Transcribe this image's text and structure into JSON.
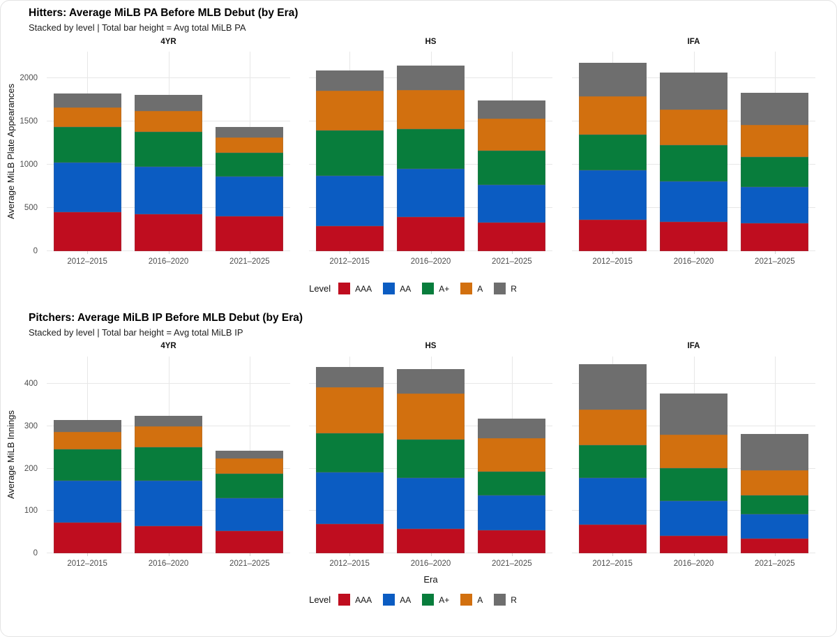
{
  "colors": {
    "AAA": "#bf0d1f",
    "AA": "#0b5cc2",
    "A+": "#087d3c",
    "A": "#d2700f",
    "R": "#6e6e6e"
  },
  "style": {
    "grid_color": "#e7e7e7",
    "tick_text_color": "#4d4d4d",
    "title_color": "#000000"
  },
  "chart_data": [
    {
      "type": "bar",
      "stacked": true,
      "title": "Hitters: Average MiLB PA Before MLB Debut (by Era)",
      "subtitle": "Stacked by level | Total bar height = Avg total MiLB PA",
      "ylabel": "Average MiLB Plate Appearances",
      "xlabel": "",
      "legend_title": "Level",
      "legend_position": "bottom",
      "levels": [
        "AAA",
        "AA",
        "A+",
        "A",
        "R"
      ],
      "categories": [
        "2012–2015",
        "2016–2020",
        "2021–2025"
      ],
      "ylim": [
        0,
        2310
      ],
      "yticks": [
        0,
        500,
        1000,
        1500,
        2000
      ],
      "grid": true,
      "facets": [
        {
          "label": "4YR",
          "series": [
            {
              "name": "AAA",
              "values": [
                455,
                430,
                400
              ]
            },
            {
              "name": "AA",
              "values": [
                570,
                550,
                465
              ]
            },
            {
              "name": "A+",
              "values": [
                410,
                405,
                270
              ]
            },
            {
              "name": "A",
              "values": [
                230,
                240,
                180
              ]
            },
            {
              "name": "R",
              "values": [
                160,
                185,
                120
              ]
            }
          ]
        },
        {
          "label": "HS",
          "series": [
            {
              "name": "AAA",
              "values": [
                290,
                395,
                335
              ]
            },
            {
              "name": "AA",
              "values": [
                585,
                560,
                430
              ]
            },
            {
              "name": "A+",
              "values": [
                520,
                460,
                395
              ]
            },
            {
              "name": "A",
              "values": [
                465,
                450,
                375
              ]
            },
            {
              "name": "R",
              "values": [
                230,
                280,
                210
              ]
            }
          ]
        },
        {
          "label": "IFA",
          "series": [
            {
              "name": "AAA",
              "values": [
                360,
                340,
                325
              ]
            },
            {
              "name": "AA",
              "values": [
                580,
                470,
                420
              ]
            },
            {
              "name": "A+",
              "values": [
                410,
                420,
                345
              ]
            },
            {
              "name": "A",
              "values": [
                440,
                410,
                370
              ]
            },
            {
              "name": "R",
              "values": [
                395,
                430,
                370
              ]
            }
          ]
        }
      ]
    },
    {
      "type": "bar",
      "stacked": true,
      "title": "Pitchers: Average MiLB IP Before MLB Debut (by Era)",
      "subtitle": "Stacked by level | Total bar height = Avg total MiLB IP",
      "ylabel": "Average MiLB Innings",
      "xlabel": "Era",
      "legend_title": "Level",
      "legend_position": "bottom",
      "levels": [
        "AAA",
        "AA",
        "A+",
        "A",
        "R"
      ],
      "categories": [
        "2012–2015",
        "2016–2020",
        "2021–2025"
      ],
      "ylim": [
        0,
        465
      ],
      "yticks": [
        0,
        100,
        200,
        300,
        400
      ],
      "grid": true,
      "facets": [
        {
          "label": "4YR",
          "series": [
            {
              "name": "AAA",
              "values": [
                73,
                65,
                53
              ]
            },
            {
              "name": "AA",
              "values": [
                98,
                107,
                78
              ]
            },
            {
              "name": "A+",
              "values": [
                74,
                78,
                57
              ]
            },
            {
              "name": "A",
              "values": [
                42,
                50,
                36
              ]
            },
            {
              "name": "R",
              "values": [
                28,
                25,
                19
              ]
            }
          ]
        },
        {
          "label": "HS",
          "series": [
            {
              "name": "AAA",
              "values": [
                70,
                58,
                55
              ]
            },
            {
              "name": "AA",
              "values": [
                122,
                120,
                82
              ]
            },
            {
              "name": "A+",
              "values": [
                91,
                91,
                56
              ]
            },
            {
              "name": "A",
              "values": [
                110,
                109,
                79
              ]
            },
            {
              "name": "R",
              "values": [
                47,
                57,
                47
              ]
            }
          ]
        },
        {
          "label": "IFA",
          "series": [
            {
              "name": "AAA",
              "values": [
                67,
                41,
                34
              ]
            },
            {
              "name": "AA",
              "values": [
                111,
                83,
                59
              ]
            },
            {
              "name": "A+",
              "values": [
                77,
                77,
                44
              ]
            },
            {
              "name": "A",
              "values": [
                85,
                80,
                60
              ]
            },
            {
              "name": "R",
              "values": [
                107,
                96,
                85
              ]
            }
          ]
        }
      ]
    }
  ]
}
